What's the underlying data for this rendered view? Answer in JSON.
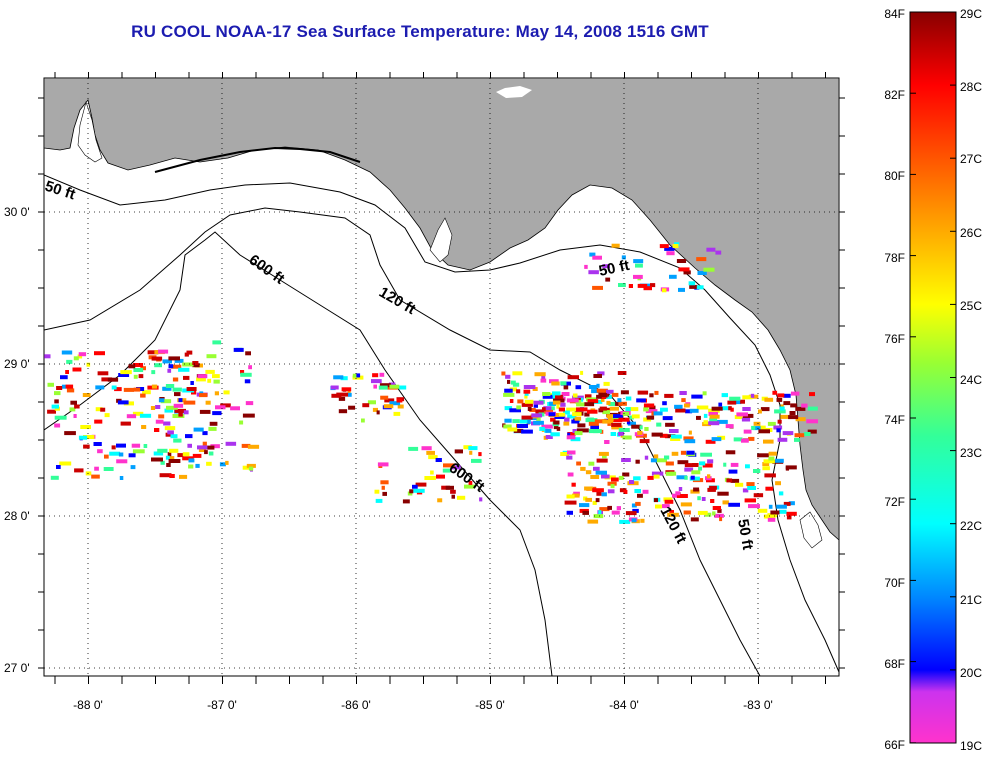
{
  "title": "RU COOL  NOAA-17  Sea Surface Temperature:  May 14, 2008 1516 GMT",
  "map": {
    "lon_labels": [
      "-88 0'",
      "-87 0'",
      "-86 0'",
      "-85 0'",
      "-84 0'",
      "-83 0'"
    ],
    "lat_labels": [
      "30 0'",
      "29 0'",
      "28 0'",
      "27 0'"
    ],
    "contour_labels": {
      "c50_west": "50 ft",
      "c50_east": "50 ft",
      "c50_south": "50 ft",
      "c120_north": "120 ft",
      "c120_south": "120 ft",
      "c600_north": "600 ft",
      "c600_south": "600 ft"
    },
    "colors": {
      "land": "#a9a9a9",
      "ocean": "#ffffff",
      "title": "#1c1cb0"
    }
  },
  "colorbar": {
    "f_labels": [
      "84F",
      "82F",
      "80F",
      "78F",
      "76F",
      "74F",
      "72F",
      "70F",
      "68F",
      "66F"
    ],
    "c_labels": [
      "29C",
      "28C",
      "27C",
      "26C",
      "25C",
      "24C",
      "23C",
      "22C",
      "21C",
      "20C",
      "19C"
    ],
    "scale_c": [
      19,
      29
    ],
    "colors": [
      "#ff33cc",
      "#aa33ee",
      "#0000ff",
      "#00a0ff",
      "#00ffff",
      "#33ff99",
      "#99ff33",
      "#ffff00",
      "#ffaa00",
      "#ff5500",
      "#ff0000",
      "#cc0000",
      "#880000"
    ]
  }
}
